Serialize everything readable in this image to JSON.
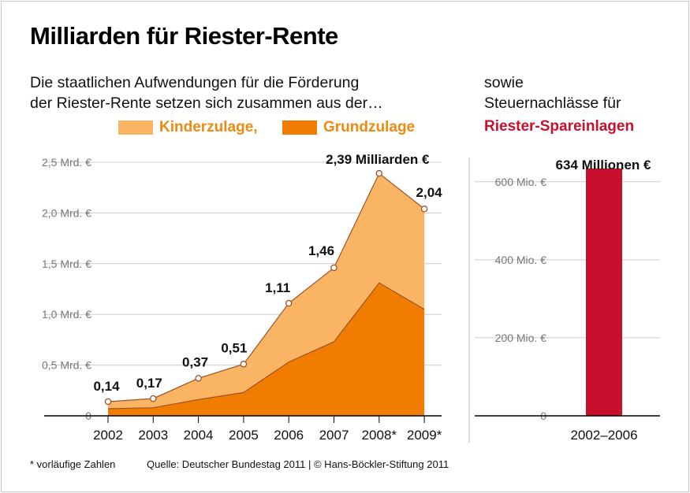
{
  "header": {
    "title": "Milliarden für Riester-Rente",
    "subtitle_line1": "Die staatlichen Aufwendungen für die Förderung",
    "subtitle_line2": "der Riester-Rente setzen sich zusammen aus der…",
    "right_line1": "sowie",
    "right_line2": "Steuernachlässe für",
    "right_highlight": "Riester-Spareinlagen"
  },
  "legend": {
    "kinder": "Kinderzulage,",
    "grund": "Grundzulage"
  },
  "footer": {
    "note": "* vorläufige Zahlen",
    "source": "Quelle: Deutscher Bundestag 2011 | © Hans-Böckler-Stiftung 2011"
  },
  "colors": {
    "kinder": "#f9b464",
    "grund": "#f07d00",
    "line": "#a0532a",
    "bar": "#c8102e",
    "grid": "#cccccc",
    "legend_text": "#ef8a10"
  },
  "chart_data": [
    {
      "type": "area",
      "stacked": true,
      "x": [
        "2002",
        "2003",
        "2004",
        "2005",
        "2006",
        "2007",
        "2008*",
        "2009*"
      ],
      "series": [
        {
          "name": "Grundzulage",
          "values": [
            0.07,
            0.08,
            0.16,
            0.23,
            0.53,
            0.73,
            1.31,
            1.05
          ]
        },
        {
          "name": "Kinderzulage",
          "values": [
            0.07,
            0.09,
            0.21,
            0.28,
            0.58,
            0.73,
            1.08,
            0.99
          ]
        }
      ],
      "totals": [
        0.14,
        0.17,
        0.37,
        0.51,
        1.11,
        1.46,
        2.39,
        2.04
      ],
      "data_labels": [
        "0,14",
        "0,17",
        "0,37",
        "0,51",
        "1,11",
        "1,46",
        "2,39 Milliarden €",
        "2,04"
      ],
      "y_ticks": [
        0,
        0.5,
        1.0,
        1.5,
        2.0,
        2.5
      ],
      "y_tick_labels": [
        "0",
        "0,5 Mrd. €",
        "1,0 Mrd. €",
        "1,5 Mrd. €",
        "2,0 Mrd. €",
        "2,5 Mrd. €"
      ],
      "ylim": [
        0,
        2.5
      ],
      "grid": true
    },
    {
      "type": "bar",
      "categories": [
        "2002–2006"
      ],
      "values": [
        634
      ],
      "data_labels": [
        "634 Millionen €"
      ],
      "y_ticks": [
        0,
        200,
        400,
        600
      ],
      "y_tick_labels": [
        "0",
        "200 Mio. €",
        "400 Mio. €",
        "600 Mio. €"
      ],
      "ylim": [
        0,
        650
      ],
      "grid": true
    }
  ]
}
